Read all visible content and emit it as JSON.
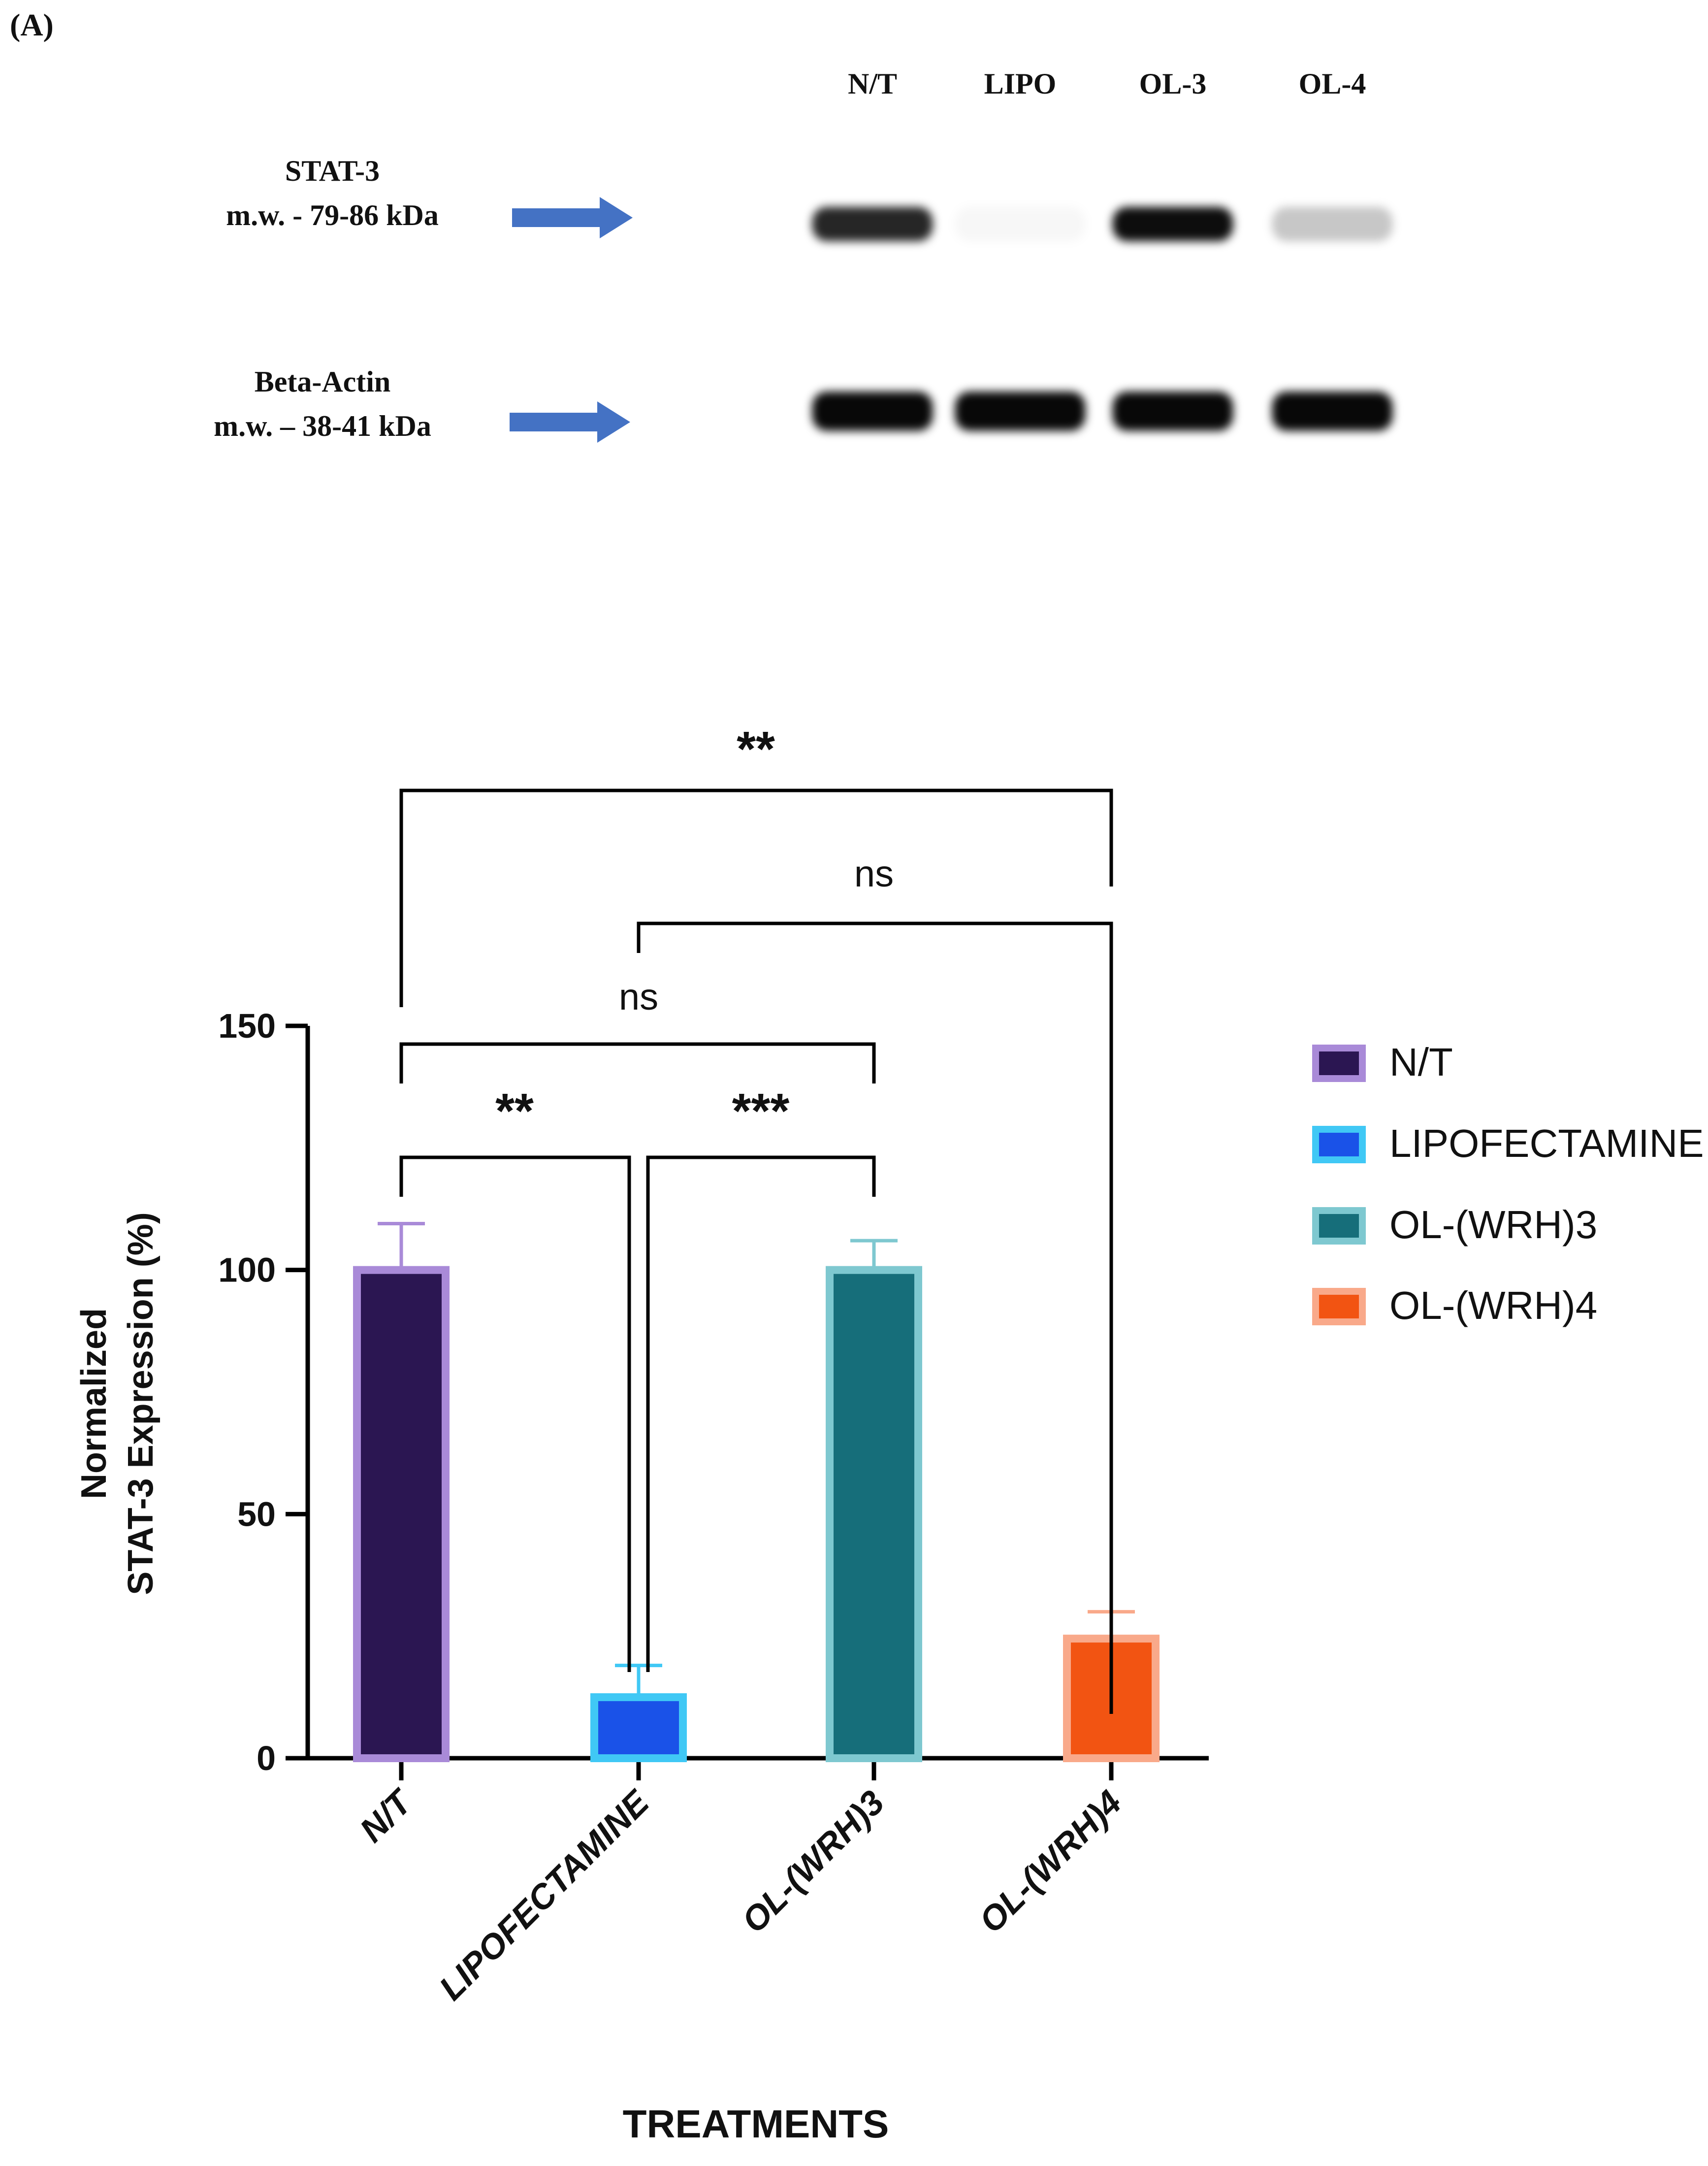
{
  "panel_label": "(A)",
  "blot": {
    "lanes": [
      "N/T",
      "LIPO",
      "OL-3",
      "OL-4"
    ],
    "bands": [
      {
        "label_line1": "STAT-3",
        "label_line2": "m.w. - 79-86 kDa",
        "intensity": [
          0.85,
          0.03,
          0.95,
          0.22
        ]
      },
      {
        "label_line1": "Beta-Actin",
        "label_line2": "m.w. – 38-41 kDa",
        "intensity": [
          0.97,
          0.97,
          0.97,
          0.97
        ]
      }
    ],
    "arrow_color": "#4472c4"
  },
  "chart_data": {
    "type": "bar",
    "categories": [
      "N/T",
      "LIPOFECTAMINE",
      "OL-(WRH)3",
      "OL-(WRH)4"
    ],
    "values": [
      100,
      12.5,
      100,
      24.5
    ],
    "errors": [
      9.5,
      6.5,
      6,
      5.5
    ],
    "fill_colors": [
      "#2b1652",
      "#1a52e8",
      "#166e7a",
      "#f25412"
    ],
    "edge_colors": [
      "#a98ad8",
      "#40c8f5",
      "#7ec8d0",
      "#f9a98a"
    ],
    "xlabel": "TREATMENTS",
    "ylabel_line1": "Normalized",
    "ylabel_line2": "STAT-3 Expression (%)",
    "ylim": [
      0,
      150
    ],
    "yticks": [
      0,
      50,
      100,
      150
    ],
    "legend": [
      "N/T",
      "LIPOFECTAMINE",
      "OL-(WRH)3",
      "OL-(WRH)4"
    ],
    "legend_position": "right",
    "grid": false,
    "significance": [
      {
        "from": 0,
        "to": 3,
        "label": "**"
      },
      {
        "from": 1,
        "to": 3,
        "label": "ns"
      },
      {
        "from": 0,
        "to": 2,
        "label": "ns"
      },
      {
        "from": 0,
        "to": 1,
        "label": "**"
      },
      {
        "from": 1,
        "to": 2,
        "label": "***"
      }
    ]
  }
}
